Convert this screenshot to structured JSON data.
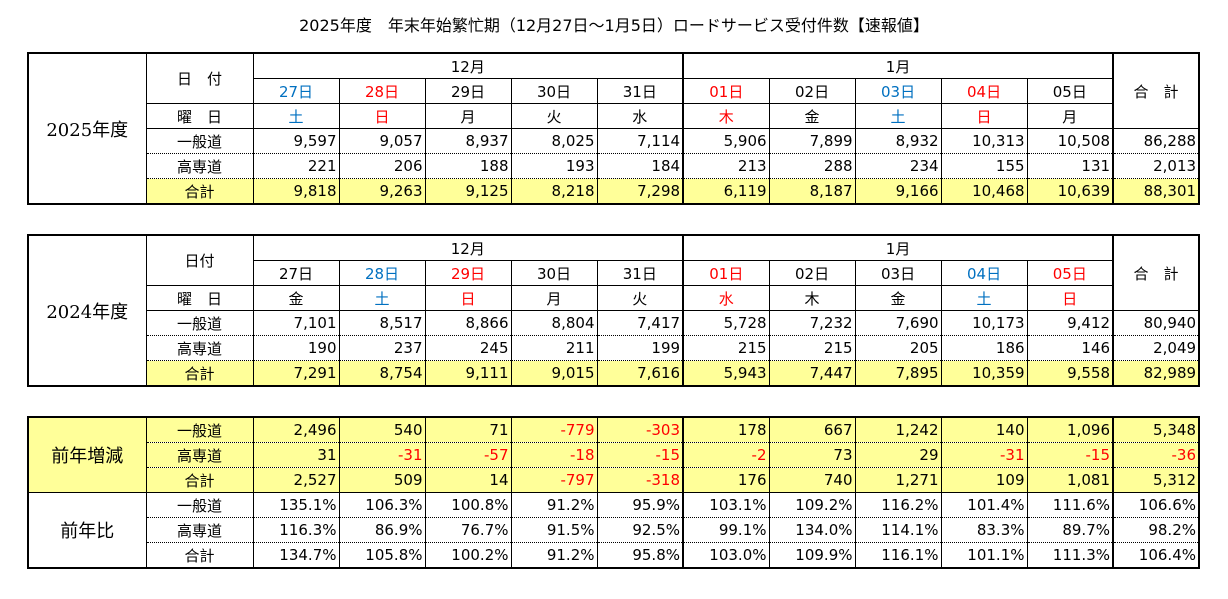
{
  "title": "2025年度　年末年始繁忙期（12月27日～1月5日）ロードサービス受付件数【速報値】",
  "colors": {
    "saturday": "#0070C0",
    "holiday": "#FF0000",
    "highlight": "#FFFF99"
  },
  "tables": [
    {
      "year_label": "2025年度",
      "date_header": "日　付",
      "dow_header": "曜　日",
      "total_header": "合　計",
      "months": [
        {
          "label": "12月",
          "span": 5
        },
        {
          "label": "1月",
          "span": 5
        }
      ],
      "dates": [
        {
          "label": "27日",
          "color": "blue"
        },
        {
          "label": "28日",
          "color": "red"
        },
        {
          "label": "29日",
          "color": ""
        },
        {
          "label": "30日",
          "color": ""
        },
        {
          "label": "31日",
          "color": ""
        },
        {
          "label": "01日",
          "color": "red"
        },
        {
          "label": "02日",
          "color": ""
        },
        {
          "label": "03日",
          "color": "blue"
        },
        {
          "label": "04日",
          "color": "red"
        },
        {
          "label": "05日",
          "color": ""
        }
      ],
      "dows": [
        {
          "label": "土",
          "color": "blue"
        },
        {
          "label": "日",
          "color": "red"
        },
        {
          "label": "月",
          "color": ""
        },
        {
          "label": "火",
          "color": ""
        },
        {
          "label": "水",
          "color": ""
        },
        {
          "label": "木",
          "color": "red"
        },
        {
          "label": "金",
          "color": ""
        },
        {
          "label": "土",
          "color": "blue"
        },
        {
          "label": "日",
          "color": "red"
        },
        {
          "label": "月",
          "color": ""
        }
      ],
      "rows": [
        {
          "label": "一般道",
          "values": [
            "9,597",
            "9,057",
            "8,937",
            "8,025",
            "7,114",
            "5,906",
            "7,899",
            "8,932",
            "10,313",
            "10,508"
          ],
          "total": "86,288"
        },
        {
          "label": "高専道",
          "values": [
            "221",
            "206",
            "188",
            "193",
            "184",
            "213",
            "288",
            "234",
            "155",
            "131"
          ],
          "total": "2,013"
        },
        {
          "label": "合計",
          "values": [
            "9,818",
            "9,263",
            "9,125",
            "8,218",
            "7,298",
            "6,119",
            "8,187",
            "9,166",
            "10,468",
            "10,639"
          ],
          "total": "88,301"
        }
      ]
    },
    {
      "year_label": "2024年度",
      "date_header": "日付",
      "dow_header": "曜　日",
      "total_header": "合　計",
      "months": [
        {
          "label": "12月",
          "span": 5
        },
        {
          "label": "1月",
          "span": 5
        }
      ],
      "dates": [
        {
          "label": "27日",
          "color": ""
        },
        {
          "label": "28日",
          "color": "blue"
        },
        {
          "label": "29日",
          "color": "red"
        },
        {
          "label": "30日",
          "color": ""
        },
        {
          "label": "31日",
          "color": ""
        },
        {
          "label": "01日",
          "color": "red"
        },
        {
          "label": "02日",
          "color": ""
        },
        {
          "label": "03日",
          "color": ""
        },
        {
          "label": "04日",
          "color": "blue"
        },
        {
          "label": "05日",
          "color": "red"
        }
      ],
      "dows": [
        {
          "label": "金",
          "color": ""
        },
        {
          "label": "土",
          "color": "blue"
        },
        {
          "label": "日",
          "color": "red"
        },
        {
          "label": "月",
          "color": ""
        },
        {
          "label": "火",
          "color": ""
        },
        {
          "label": "水",
          "color": "red"
        },
        {
          "label": "木",
          "color": ""
        },
        {
          "label": "金",
          "color": ""
        },
        {
          "label": "土",
          "color": "blue"
        },
        {
          "label": "日",
          "color": "red"
        }
      ],
      "rows": [
        {
          "label": "一般道",
          "values": [
            "7,101",
            "8,517",
            "8,866",
            "8,804",
            "7,417",
            "5,728",
            "7,232",
            "7,690",
            "10,173",
            "9,412"
          ],
          "total": "80,940"
        },
        {
          "label": "高専道",
          "values": [
            "190",
            "237",
            "245",
            "211",
            "199",
            "215",
            "215",
            "205",
            "186",
            "146"
          ],
          "total": "2,049"
        },
        {
          "label": "合計",
          "values": [
            "7,291",
            "8,754",
            "9,111",
            "9,015",
            "7,616",
            "5,943",
            "7,447",
            "7,895",
            "10,359",
            "9,558"
          ],
          "total": "82,989"
        }
      ]
    }
  ],
  "comparison": [
    {
      "label": "前年増減",
      "rows": [
        {
          "label": "一般道",
          "values": [
            "2,496",
            "540",
            "71",
            "-779",
            "-303",
            "178",
            "667",
            "1,242",
            "140",
            "1,096"
          ],
          "total": "5,348"
        },
        {
          "label": "高専道",
          "values": [
            "31",
            "-31",
            "-57",
            "-18",
            "-15",
            "-2",
            "73",
            "29",
            "-31",
            "-15"
          ],
          "total": "-36"
        },
        {
          "label": "合計",
          "values": [
            "2,527",
            "509",
            "14",
            "-797",
            "-318",
            "176",
            "740",
            "1,271",
            "109",
            "1,081"
          ],
          "total": "5,312"
        }
      ]
    },
    {
      "label": "前年比",
      "rows": [
        {
          "label": "一般道",
          "values": [
            "135.1%",
            "106.3%",
            "100.8%",
            "91.2%",
            "95.9%",
            "103.1%",
            "109.2%",
            "116.2%",
            "101.4%",
            "111.6%"
          ],
          "total": "106.6%"
        },
        {
          "label": "高専道",
          "values": [
            "116.3%",
            "86.9%",
            "76.7%",
            "91.5%",
            "92.5%",
            "99.1%",
            "134.0%",
            "114.1%",
            "83.3%",
            "89.7%"
          ],
          "total": "98.2%"
        },
        {
          "label": "合計",
          "values": [
            "134.7%",
            "105.8%",
            "100.2%",
            "91.2%",
            "95.8%",
            "103.0%",
            "109.9%",
            "116.1%",
            "101.1%",
            "111.3%"
          ],
          "total": "106.4%"
        }
      ]
    }
  ]
}
